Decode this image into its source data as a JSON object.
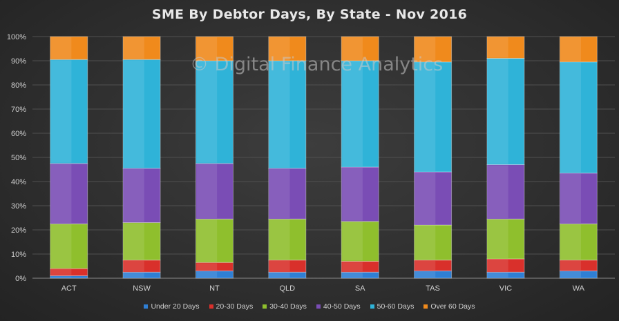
{
  "watermark": "© Digital Finance Analytics",
  "chart_data": {
    "type": "bar",
    "stacked": true,
    "percent": true,
    "title": "SME By Debtor Days, By State - Nov 2016",
    "xlabel": "",
    "ylabel": "",
    "ylim": [
      0,
      100
    ],
    "yticks": [
      "0%",
      "10%",
      "20%",
      "30%",
      "40%",
      "50%",
      "60%",
      "70%",
      "80%",
      "90%",
      "100%"
    ],
    "grid": true,
    "legend_position": "bottom",
    "categories": [
      "ACT",
      "NSW",
      "NT",
      "QLD",
      "SA",
      "TAS",
      "VIC",
      "WA"
    ],
    "series": [
      {
        "name": "Under 20 Days",
        "color": "#2f7fd4",
        "values": [
          1.0,
          2.5,
          3.0,
          2.5,
          2.5,
          3.0,
          2.5,
          3.0
        ]
      },
      {
        "name": "20-30 Days",
        "color": "#d9302b",
        "values": [
          3.0,
          5.0,
          3.5,
          5.0,
          4.5,
          4.5,
          5.5,
          4.5
        ]
      },
      {
        "name": "30-40 Days",
        "color": "#8fbf2d",
        "values": [
          18.5,
          15.5,
          18.0,
          17.0,
          16.5,
          14.5,
          16.5,
          15.0
        ]
      },
      {
        "name": "40-50 Days",
        "color": "#7a4db5",
        "values": [
          25.0,
          22.5,
          23.0,
          21.0,
          22.5,
          22.0,
          22.5,
          21.0
        ]
      },
      {
        "name": "50-60 Days",
        "color": "#2fb3d8",
        "values": [
          43.0,
          45.0,
          42.5,
          44.5,
          44.0,
          45.5,
          44.0,
          46.0
        ]
      },
      {
        "name": "Over 60 Days",
        "color": "#f08a1c",
        "values": [
          9.5,
          9.5,
          10.0,
          10.0,
          10.0,
          10.5,
          9.0,
          10.5
        ]
      }
    ]
  }
}
